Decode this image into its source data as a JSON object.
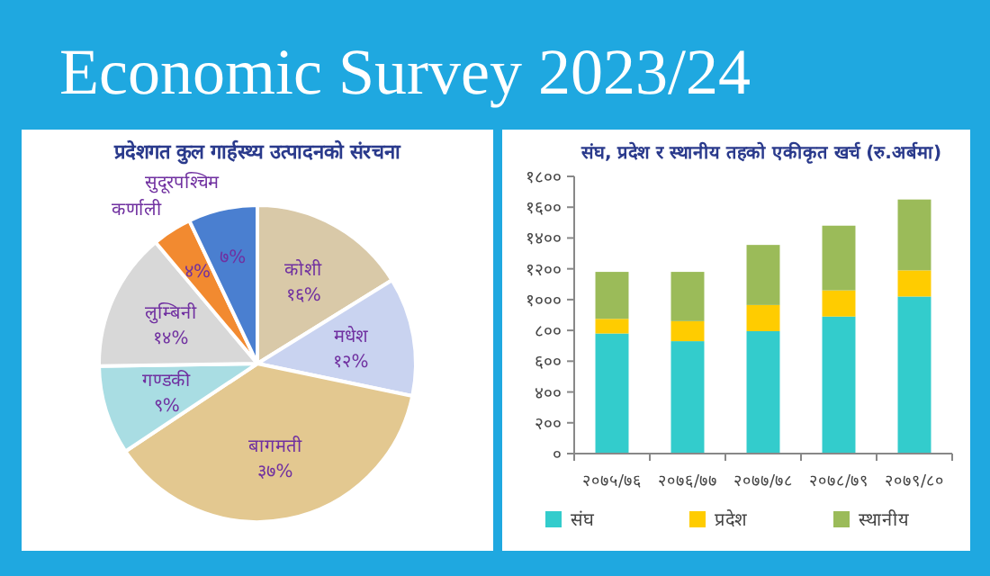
{
  "chart_data": [
    {
      "type": "pie",
      "title": "प्रदेशगत कुल गार्हस्थ्य उत्पादनको संरचना",
      "annotations": [
        "Economic Survey 2023/24"
      ],
      "categories": [
        "कोशी",
        "मधेश",
        "बागमती",
        "गण्डकी",
        "लुम्बिनी",
        "कर्णाली",
        "सुदूरपश्चिम"
      ],
      "values": [
        16,
        12,
        37,
        9,
        14,
        4,
        7
      ],
      "value_labels": [
        "१६%",
        "१२%",
        "३७%",
        "९%",
        "१४%",
        "४%",
        "७%"
      ],
      "colors": [
        "#d9c9a8",
        "#c9d3f0",
        "#e3c890",
        "#a9dde3",
        "#d8d8d8",
        "#f28a30",
        "#4a7fd0"
      ]
    },
    {
      "type": "bar",
      "title": "संघ, प्रदेश र स्थानीय तहको एकीकृत खर्च (रु.अर्बमा)",
      "stacked": true,
      "legend": "bottom",
      "categories": [
        "२०७५/७६",
        "२०७६/७७",
        "२०७७/७८",
        "२०७८/७९",
        "२०७९/८०"
      ],
      "ylim": [
        0,
        1800
      ],
      "yticks": [
        {
          "value": 0,
          "label": "०"
        },
        {
          "value": 200,
          "label": "२००"
        },
        {
          "value": 400,
          "label": "४००"
        },
        {
          "value": 600,
          "label": "६००"
        },
        {
          "value": 800,
          "label": "८००"
        },
        {
          "value": 1000,
          "label": "१०००"
        },
        {
          "value": 1200,
          "label": "१२००"
        },
        {
          "value": 1400,
          "label": "१४००"
        },
        {
          "value": 1600,
          "label": "१६००"
        },
        {
          "value": 1800,
          "label": "१८००"
        }
      ],
      "series": [
        {
          "name": "संघ",
          "color": "#33cccc",
          "values": [
            780,
            730,
            795,
            890,
            1020
          ]
        },
        {
          "name": "प्रदेश",
          "color": "#ffcc00",
          "values": [
            95,
            130,
            170,
            170,
            170
          ]
        },
        {
          "name": "स्थानीय",
          "color": "#9bbb59",
          "values": [
            305,
            320,
            390,
            420,
            460
          ]
        }
      ]
    }
  ]
}
